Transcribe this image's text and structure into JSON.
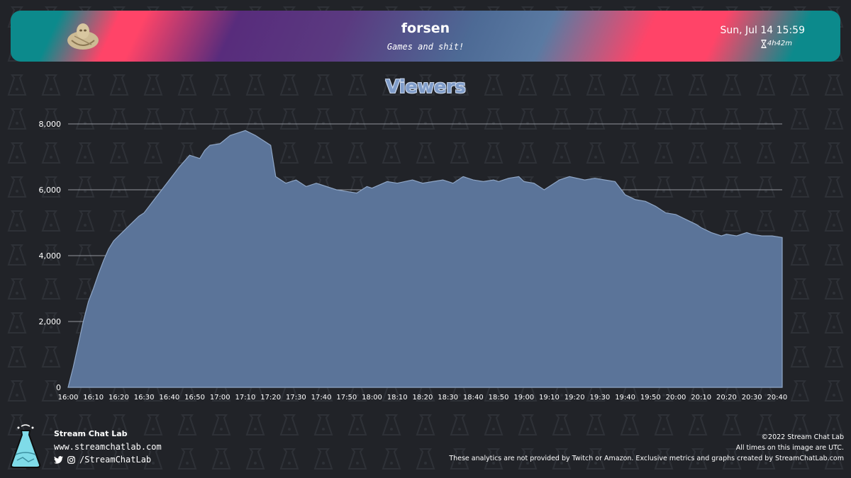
{
  "header": {
    "channel": "forsen",
    "subtitle": "Games and shit!",
    "date": "Sun, Jul 14 15:59",
    "duration": "4h42m"
  },
  "colors": {
    "area_fill": "#5b7499",
    "area_line": "#8fa6c6",
    "background": "#212328",
    "grid": "#b8bcc4"
  },
  "chart_data": {
    "type": "area",
    "title": "Viewers",
    "xlabel": "",
    "ylabel": "",
    "ylim": [
      0,
      8000
    ],
    "yticks": [
      0,
      2000,
      4000,
      6000,
      8000
    ],
    "ytick_labels": [
      "0",
      "2,000",
      "4,000",
      "6,000",
      "8,000"
    ],
    "xticks": [
      "16:00",
      "16:10",
      "16:20",
      "16:30",
      "16:40",
      "16:50",
      "17:00",
      "17:10",
      "17:20",
      "17:30",
      "17:40",
      "17:50",
      "18:00",
      "18:10",
      "18:20",
      "18:30",
      "18:40",
      "18:50",
      "19:00",
      "19:10",
      "19:20",
      "19:30",
      "19:40",
      "19:50",
      "20:00",
      "20:10",
      "20:20",
      "20:30",
      "20:40"
    ],
    "grid": true,
    "legend": "none",
    "series": [
      {
        "x": [
          "16:00",
          "16:02",
          "16:04",
          "16:06",
          "16:08",
          "16:10",
          "16:12",
          "16:14",
          "16:16",
          "16:18",
          "16:20",
          "16:22",
          "16:24",
          "16:26",
          "16:28",
          "16:30",
          "16:34",
          "16:38",
          "16:40",
          "16:44",
          "16:48",
          "16:52",
          "16:54",
          "16:56",
          "17:00",
          "17:04",
          "17:10",
          "17:14",
          "17:20",
          "17:22",
          "17:26",
          "17:30",
          "17:34",
          "17:38",
          "17:40",
          "17:46",
          "17:50",
          "17:54",
          "17:58",
          "18:00",
          "18:06",
          "18:10",
          "18:16",
          "18:20",
          "18:24",
          "18:28",
          "18:32",
          "18:36",
          "18:40",
          "18:44",
          "18:48",
          "18:50",
          "18:54",
          "18:58",
          "19:00",
          "19:04",
          "19:08",
          "19:12",
          "19:14",
          "19:18",
          "19:24",
          "19:28",
          "19:32",
          "19:36",
          "19:40",
          "19:44",
          "19:48",
          "19:52",
          "19:56",
          "20:00",
          "20:04",
          "20:08",
          "20:10",
          "20:14",
          "20:18",
          "20:20",
          "20:24",
          "20:28",
          "20:30",
          "20:34",
          "20:38",
          "20:42"
        ],
        "values": [
          0,
          600,
          1300,
          2000,
          2600,
          3000,
          3450,
          3850,
          4200,
          4450,
          4600,
          4750,
          4900,
          5050,
          5200,
          5300,
          5700,
          6100,
          6300,
          6700,
          7050,
          6950,
          7200,
          7350,
          7400,
          7650,
          7800,
          7650,
          7350,
          6400,
          6200,
          6300,
          6100,
          6200,
          6150,
          6000,
          5950,
          5900,
          6100,
          6050,
          6250,
          6200,
          6300,
          6200,
          6250,
          6300,
          6200,
          6400,
          6300,
          6250,
          6300,
          6250,
          6350,
          6400,
          6250,
          6200,
          6000,
          6200,
          6300,
          6400,
          6300,
          6350,
          6300,
          6250,
          5850,
          5700,
          5650,
          5500,
          5300,
          5250,
          5100,
          4950,
          4850,
          4700,
          4600,
          4650,
          4600,
          4700,
          4650,
          4600,
          4600,
          4550
        ]
      }
    ]
  },
  "footer": {
    "brand": "Stream Chat Lab",
    "site": "www.streamchatlab.com",
    "social": "/StreamChatLab",
    "copyright": "©2022 Stream Chat Lab",
    "timezone_note": "All times on this image are UTC.",
    "disclaimer": "These analytics are not provided by Twitch or Amazon. Exclusive metrics and graphs created by StreamChatLab.com"
  }
}
